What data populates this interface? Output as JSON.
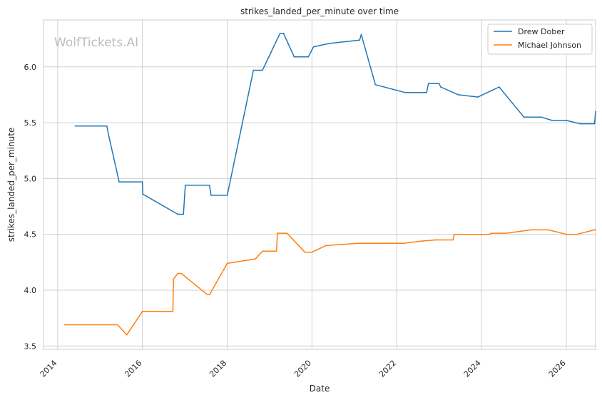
{
  "chart_data": {
    "type": "line",
    "title": "strikes_landed_per_minute over time",
    "xlabel": "Date",
    "ylabel": "strikes_landed_per_minute",
    "watermark": "WolfTickets.AI",
    "xlim": [
      "2013-09-01",
      "2026-09-10"
    ],
    "ylim": [
      3.47,
      6.42
    ],
    "x_ticks": [
      "2014",
      "2016",
      "2018",
      "2020",
      "2022",
      "2024",
      "2026"
    ],
    "y_ticks": [
      "3.5",
      "4.0",
      "4.5",
      "5.0",
      "5.5",
      "6.0"
    ],
    "grid": true,
    "legend_position": "top-right",
    "series": [
      {
        "name": "Drew Dober",
        "color": "#1f77b4",
        "points": [
          [
            "2014-06-01",
            5.47
          ],
          [
            "2015-03-01",
            5.47
          ],
          [
            "2015-03-20",
            5.37
          ],
          [
            "2015-06-15",
            4.97
          ],
          [
            "2016-01-01",
            4.97
          ],
          [
            "2016-01-05",
            4.86
          ],
          [
            "2016-11-01",
            4.68
          ],
          [
            "2016-12-20",
            4.68
          ],
          [
            "2017-01-05",
            4.94
          ],
          [
            "2017-08-01",
            4.94
          ],
          [
            "2017-08-15",
            4.85
          ],
          [
            "2018-01-01",
            4.85
          ],
          [
            "2018-08-15",
            5.97
          ],
          [
            "2018-11-01",
            5.97
          ],
          [
            "2019-04-01",
            6.3
          ],
          [
            "2019-05-01",
            6.3
          ],
          [
            "2019-08-01",
            6.09
          ],
          [
            "2019-12-01",
            6.09
          ],
          [
            "2020-01-15",
            6.18
          ],
          [
            "2020-06-01",
            6.21
          ],
          [
            "2021-02-15",
            6.24
          ],
          [
            "2021-03-01",
            6.29
          ],
          [
            "2021-07-01",
            5.84
          ],
          [
            "2022-03-15",
            5.77
          ],
          [
            "2022-09-15",
            5.77
          ],
          [
            "2022-10-01",
            5.85
          ],
          [
            "2023-01-01",
            5.85
          ],
          [
            "2023-01-15",
            5.82
          ],
          [
            "2023-06-15",
            5.75
          ],
          [
            "2023-12-01",
            5.73
          ],
          [
            "2024-06-01",
            5.82
          ],
          [
            "2025-01-01",
            5.55
          ],
          [
            "2025-06-01",
            5.55
          ],
          [
            "2025-09-01",
            5.52
          ],
          [
            "2026-01-01",
            5.52
          ],
          [
            "2026-05-01",
            5.49
          ],
          [
            "2026-09-01",
            5.49
          ],
          [
            "2026-09-10",
            5.6
          ]
        ]
      },
      {
        "name": "Michael Johnson",
        "color": "#ff7f0e",
        "points": [
          [
            "2014-03-01",
            3.69
          ],
          [
            "2015-06-01",
            3.69
          ],
          [
            "2015-08-20",
            3.6
          ],
          [
            "2016-01-01",
            3.81
          ],
          [
            "2016-09-20",
            3.81
          ],
          [
            "2016-09-25",
            4.1
          ],
          [
            "2016-11-01",
            4.15
          ],
          [
            "2016-12-01",
            4.15
          ],
          [
            "2017-07-15",
            3.96
          ],
          [
            "2017-08-01",
            3.96
          ],
          [
            "2018-01-01",
            4.24
          ],
          [
            "2018-09-01",
            4.28
          ],
          [
            "2018-11-01",
            4.35
          ],
          [
            "2019-03-01",
            4.35
          ],
          [
            "2019-03-10",
            4.51
          ],
          [
            "2019-06-01",
            4.51
          ],
          [
            "2019-11-01",
            4.34
          ],
          [
            "2020-01-01",
            4.34
          ],
          [
            "2020-05-01",
            4.4
          ],
          [
            "2021-02-01",
            4.42
          ],
          [
            "2022-03-01",
            4.42
          ],
          [
            "2022-08-01",
            4.44
          ],
          [
            "2022-12-01",
            4.45
          ],
          [
            "2023-05-01",
            4.45
          ],
          [
            "2023-05-10",
            4.5
          ],
          [
            "2024-03-01",
            4.5
          ],
          [
            "2024-04-01",
            4.51
          ],
          [
            "2024-08-01",
            4.51
          ],
          [
            "2025-03-01",
            4.54
          ],
          [
            "2025-08-01",
            4.54
          ],
          [
            "2026-01-01",
            4.5
          ],
          [
            "2026-04-01",
            4.5
          ],
          [
            "2026-09-01",
            4.54
          ],
          [
            "2026-09-10",
            4.54
          ]
        ]
      }
    ]
  }
}
